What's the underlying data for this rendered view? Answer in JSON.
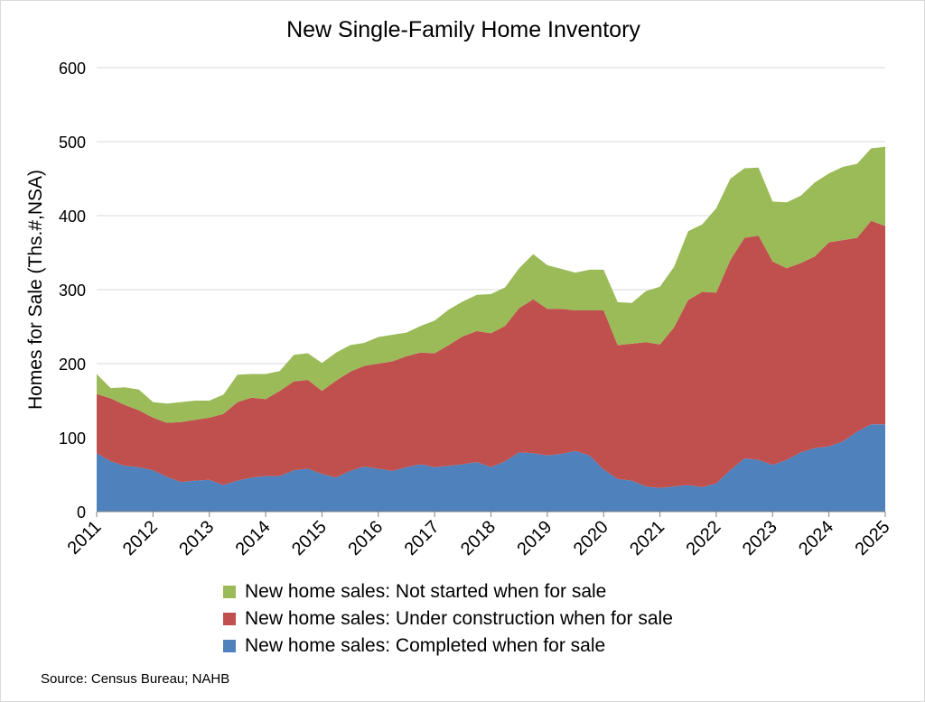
{
  "chart_data": {
    "type": "area",
    "stacked": true,
    "title": "New Single-Family Home Inventory",
    "ylabel": "Homes for Sale (Ths.#,NSA)",
    "xlabel": "",
    "ylim": [
      0,
      600
    ],
    "yticks": [
      "0",
      "100",
      "200",
      "300",
      "400",
      "500",
      "600"
    ],
    "xticks": [
      "2011",
      "2012",
      "2013",
      "2014",
      "2015",
      "2016",
      "2017",
      "2018",
      "2019",
      "2020",
      "2021",
      "2022",
      "2023",
      "2024",
      "2025"
    ],
    "xlim": [
      2011,
      2025
    ],
    "grid": true,
    "legend_position": "bottom",
    "x": [
      2011.0,
      2011.25,
      2011.5,
      2011.75,
      2012.0,
      2012.25,
      2012.5,
      2012.75,
      2013.0,
      2013.25,
      2013.5,
      2013.75,
      2014.0,
      2014.25,
      2014.5,
      2014.75,
      2015.0,
      2015.25,
      2015.5,
      2015.75,
      2016.0,
      2016.25,
      2016.5,
      2016.75,
      2017.0,
      2017.25,
      2017.5,
      2017.75,
      2018.0,
      2018.25,
      2018.5,
      2018.75,
      2019.0,
      2019.25,
      2019.5,
      2019.75,
      2020.0,
      2020.25,
      2020.5,
      2020.75,
      2021.0,
      2021.25,
      2021.5,
      2021.75,
      2022.0,
      2022.25,
      2022.5,
      2022.75,
      2023.0,
      2023.25,
      2023.5,
      2023.75,
      2024.0,
      2024.25,
      2024.5,
      2024.75,
      2025.0
    ],
    "series": [
      {
        "name": "New home sales: Completed when for sale",
        "color": "#4f81bd",
        "values": [
          79,
          68,
          62,
          60,
          56,
          47,
          40,
          42,
          43,
          36,
          42,
          46,
          48,
          48,
          56,
          58,
          51,
          46,
          55,
          61,
          58,
          55,
          60,
          64,
          60,
          62,
          64,
          67,
          60,
          68,
          80,
          79,
          76,
          78,
          82,
          76,
          57,
          44,
          42,
          34,
          32,
          34,
          36,
          33,
          38,
          56,
          72,
          70,
          63,
          70,
          80,
          86,
          88,
          95,
          108,
          118,
          118
        ]
      },
      {
        "name": "New home sales: Under construction when for sale",
        "color": "#c0504d",
        "values": [
          80,
          85,
          82,
          77,
          71,
          73,
          81,
          82,
          84,
          96,
          106,
          108,
          104,
          115,
          120,
          120,
          112,
          131,
          134,
          136,
          142,
          148,
          150,
          151,
          154,
          163,
          173,
          177,
          181,
          183,
          195,
          208,
          198,
          196,
          190,
          196,
          215,
          181,
          185,
          195,
          194,
          215,
          250,
          264,
          258,
          284,
          298,
          303,
          275,
          259,
          256,
          259,
          276,
          272,
          262,
          275,
          268
        ]
      },
      {
        "name": "New home sales: Not started when for sale",
        "color": "#9bbb59",
        "values": [
          27,
          14,
          24,
          28,
          21,
          26,
          27,
          26,
          23,
          26,
          37,
          32,
          34,
          27,
          36,
          36,
          38,
          38,
          36,
          31,
          36,
          36,
          32,
          36,
          44,
          48,
          47,
          49,
          53,
          52,
          54,
          61,
          59,
          54,
          51,
          55,
          55,
          58,
          55,
          69,
          78,
          82,
          93,
          91,
          114,
          110,
          94,
          92,
          81,
          89,
          91,
          100,
          93,
          99,
          100,
          98,
          107
        ]
      }
    ],
    "legend_order": [
      2,
      1,
      0
    ],
    "source": "Source: Census Bureau; NAHB"
  }
}
